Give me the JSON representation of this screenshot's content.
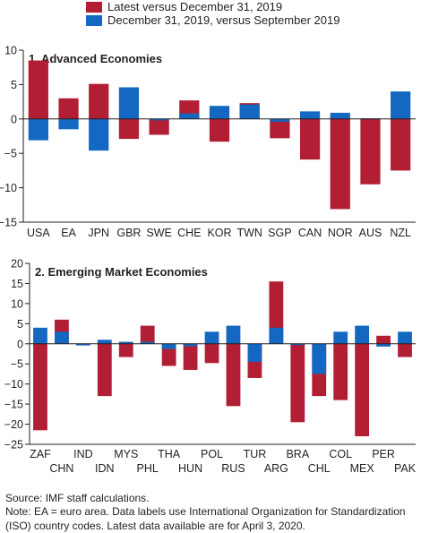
{
  "legend": [
    {
      "label": "Latest versus December 31, 2019",
      "color": "#b21f35"
    },
    {
      "label": "December 31, 2019, versus September 2019",
      "color": "#1468c2"
    }
  ],
  "colors": {
    "latest": "#b21f35",
    "q4": "#1468c2",
    "axis": "#231f20",
    "grid": "#c7c8ca"
  },
  "footer": {
    "source": "Source: IMF staff calculations.",
    "note_line1": "Note: EA = euro area. Data labels use International Organization for Standardization",
    "note_line2": "(ISO) country codes. Latest data available are for April 3, 2020."
  },
  "chart_data": [
    {
      "type": "bar",
      "title": "1. Advanced Economies",
      "categories": [
        "USA",
        "EA",
        "JPN",
        "GBR",
        "SWE",
        "CHE",
        "KOR",
        "TWN",
        "SGP",
        "CAN",
        "NOR",
        "AUS",
        "NZL"
      ],
      "ylim": [
        -15,
        10
      ],
      "yticks": [
        10,
        5,
        0,
        -5,
        -10,
        -15
      ],
      "series": [
        {
          "name": "Latest versus December 31, 2019",
          "values": [
            8.5,
            3.0,
            5.1,
            -2.9,
            -2.3,
            2.7,
            -3.3,
            2.3,
            -2.8,
            -5.9,
            -13.1,
            -9.5,
            -7.5
          ]
        },
        {
          "name": "December 31, 2019, versus September 2019",
          "values": [
            -3.1,
            -1.5,
            -4.6,
            4.6,
            -0.2,
            0.8,
            1.9,
            2.1,
            -0.4,
            1.1,
            0.9,
            0.1,
            4.0
          ]
        }
      ]
    },
    {
      "type": "bar",
      "title": "2. Emerging Market Economies",
      "categories": [
        "ZAF",
        "CHN",
        "IND",
        "IDN",
        "MYS",
        "PHL",
        "THA",
        "HUN",
        "POL",
        "RUS",
        "TUR",
        "ARG",
        "BRA",
        "CHL",
        "COL",
        "MEX",
        "PER",
        "PAK"
      ],
      "ylim": [
        -25,
        20
      ],
      "yticks": [
        20,
        15,
        10,
        5,
        0,
        -5,
        -10,
        -15,
        -20,
        -25
      ],
      "series": [
        {
          "name": "Latest versus December 31, 2019",
          "values": [
            -21.5,
            6.0,
            -0.4,
            -13.0,
            -3.3,
            4.5,
            -5.5,
            -6.5,
            -4.8,
            -15.5,
            -8.5,
            15.5,
            -19.5,
            -13.0,
            -14.0,
            -23.0,
            2.0,
            -3.3
          ]
        },
        {
          "name": "December 31, 2019, versus September 2019",
          "values": [
            4.0,
            3.0,
            -0.4,
            1.0,
            0.5,
            0.5,
            -1.3,
            -0.6,
            3.0,
            4.5,
            -4.5,
            4.0,
            -0.3,
            -7.5,
            3.0,
            4.5,
            -0.7,
            3.0
          ]
        }
      ]
    }
  ]
}
